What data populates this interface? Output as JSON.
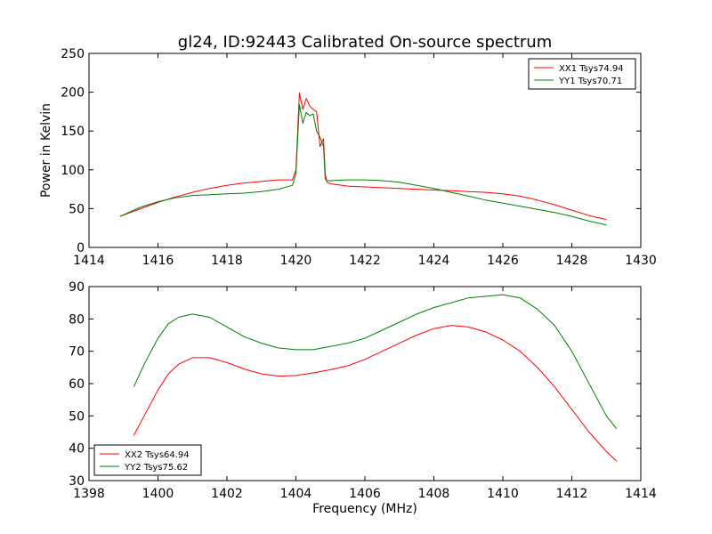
{
  "chart_data": [
    {
      "type": "line",
      "title": "gl24, ID:92443 Calibrated On-source spectrum",
      "xlabel": "",
      "ylabel": "Power in Kelvin",
      "xlim": [
        1414,
        1430
      ],
      "ylim": [
        0,
        250
      ],
      "xticks": [
        "1414",
        "1416",
        "1418",
        "1420",
        "1422",
        "1424",
        "1426",
        "1428",
        "1430"
      ],
      "yticks": [
        "0",
        "50",
        "100",
        "150",
        "200",
        "250"
      ],
      "legend": "top-right",
      "series": [
        {
          "name": "XX1 Tsys74.94",
          "color": "#ff0000",
          "x": [
            1414.9,
            1415.5,
            1416,
            1416.5,
            1417,
            1417.5,
            1418,
            1418.5,
            1419,
            1419.5,
            1419.9,
            1420.0,
            1420.1,
            1420.2,
            1420.3,
            1420.4,
            1420.5,
            1420.6,
            1420.7,
            1420.8,
            1420.85,
            1420.9,
            1421.0,
            1421.5,
            1422,
            1422.5,
            1423,
            1423.5,
            1424,
            1424.5,
            1425,
            1425.5,
            1426,
            1426.5,
            1427,
            1427.5,
            1428,
            1428.5,
            1429
          ],
          "values": [
            40,
            50,
            58,
            65,
            71,
            76,
            80,
            83,
            85,
            87,
            87,
            100,
            199,
            178,
            192,
            182,
            178,
            175,
            130,
            140,
            95,
            84,
            82,
            79,
            78,
            77,
            76,
            75,
            74,
            73,
            72,
            71,
            69,
            66,
            61,
            55,
            48,
            41,
            36
          ]
        },
        {
          "name": "YY1 Tsys70.71",
          "color": "#008000",
          "x": [
            1414.9,
            1415.5,
            1416,
            1416.5,
            1417,
            1417.5,
            1418,
            1418.5,
            1419,
            1419.5,
            1419.9,
            1420.0,
            1420.1,
            1420.2,
            1420.3,
            1420.4,
            1420.5,
            1420.6,
            1420.7,
            1420.8,
            1420.85,
            1420.9,
            1421.0,
            1421.5,
            1422,
            1422.5,
            1423,
            1423.5,
            1424,
            1424.5,
            1425,
            1425.5,
            1426,
            1426.5,
            1427,
            1427.5,
            1428,
            1428.5,
            1429
          ],
          "values": [
            40,
            52,
            59,
            64,
            67,
            68,
            69,
            70,
            72,
            75,
            80,
            95,
            184,
            160,
            174,
            170,
            172,
            150,
            142,
            130,
            88,
            86,
            86,
            87,
            87,
            86,
            84,
            80,
            76,
            71,
            66,
            61,
            57,
            53,
            49,
            45,
            40,
            34,
            29
          ]
        }
      ]
    },
    {
      "type": "line",
      "title": "",
      "xlabel": "Frequency (MHz)",
      "ylabel": "",
      "xlim": [
        1398,
        1414
      ],
      "ylim": [
        30,
        90
      ],
      "xticks": [
        "1398",
        "1400",
        "1402",
        "1404",
        "1406",
        "1408",
        "1410",
        "1412",
        "1414"
      ],
      "yticks": [
        "30",
        "40",
        "50",
        "60",
        "70",
        "80",
        "90"
      ],
      "legend": "bottom-left",
      "series": [
        {
          "name": "XX2 Tsys64.94",
          "color": "#ff0000",
          "x": [
            1399.3,
            1399.6,
            1400.0,
            1400.3,
            1400.6,
            1401.0,
            1401.5,
            1402.0,
            1402.5,
            1403.0,
            1403.5,
            1404.0,
            1404.5,
            1405.0,
            1405.5,
            1406.0,
            1406.5,
            1407.0,
            1407.5,
            1408.0,
            1408.5,
            1409.0,
            1409.5,
            1410.0,
            1410.5,
            1411.0,
            1411.5,
            1412.0,
            1412.5,
            1413.0,
            1413.3
          ],
          "values": [
            44,
            50,
            58,
            63,
            66,
            68,
            68,
            66.5,
            64.5,
            63,
            62.3,
            62.5,
            63.3,
            64.3,
            65.5,
            67.5,
            70,
            72.5,
            75,
            77,
            78,
            77.5,
            76,
            73.5,
            70,
            65,
            59,
            52,
            45,
            39,
            36
          ]
        },
        {
          "name": "YY2 Tsys75.62",
          "color": "#008000",
          "x": [
            1399.3,
            1399.6,
            1400.0,
            1400.3,
            1400.6,
            1401.0,
            1401.5,
            1402.0,
            1402.5,
            1403.0,
            1403.5,
            1404.0,
            1404.5,
            1405.0,
            1405.5,
            1406.0,
            1406.5,
            1407.0,
            1407.5,
            1408.0,
            1408.5,
            1409.0,
            1409.5,
            1410.0,
            1410.5,
            1411.0,
            1411.5,
            1412.0,
            1412.5,
            1413.0,
            1413.3
          ],
          "values": [
            59,
            66,
            74,
            78.5,
            80.5,
            81.5,
            80.5,
            77.5,
            74.5,
            72.5,
            71,
            70.5,
            70.5,
            71.5,
            72.5,
            74,
            76.5,
            79,
            81.5,
            83.5,
            85,
            86.5,
            87,
            87.5,
            86.5,
            83,
            78,
            70,
            60,
            50,
            46
          ]
        }
      ]
    }
  ]
}
